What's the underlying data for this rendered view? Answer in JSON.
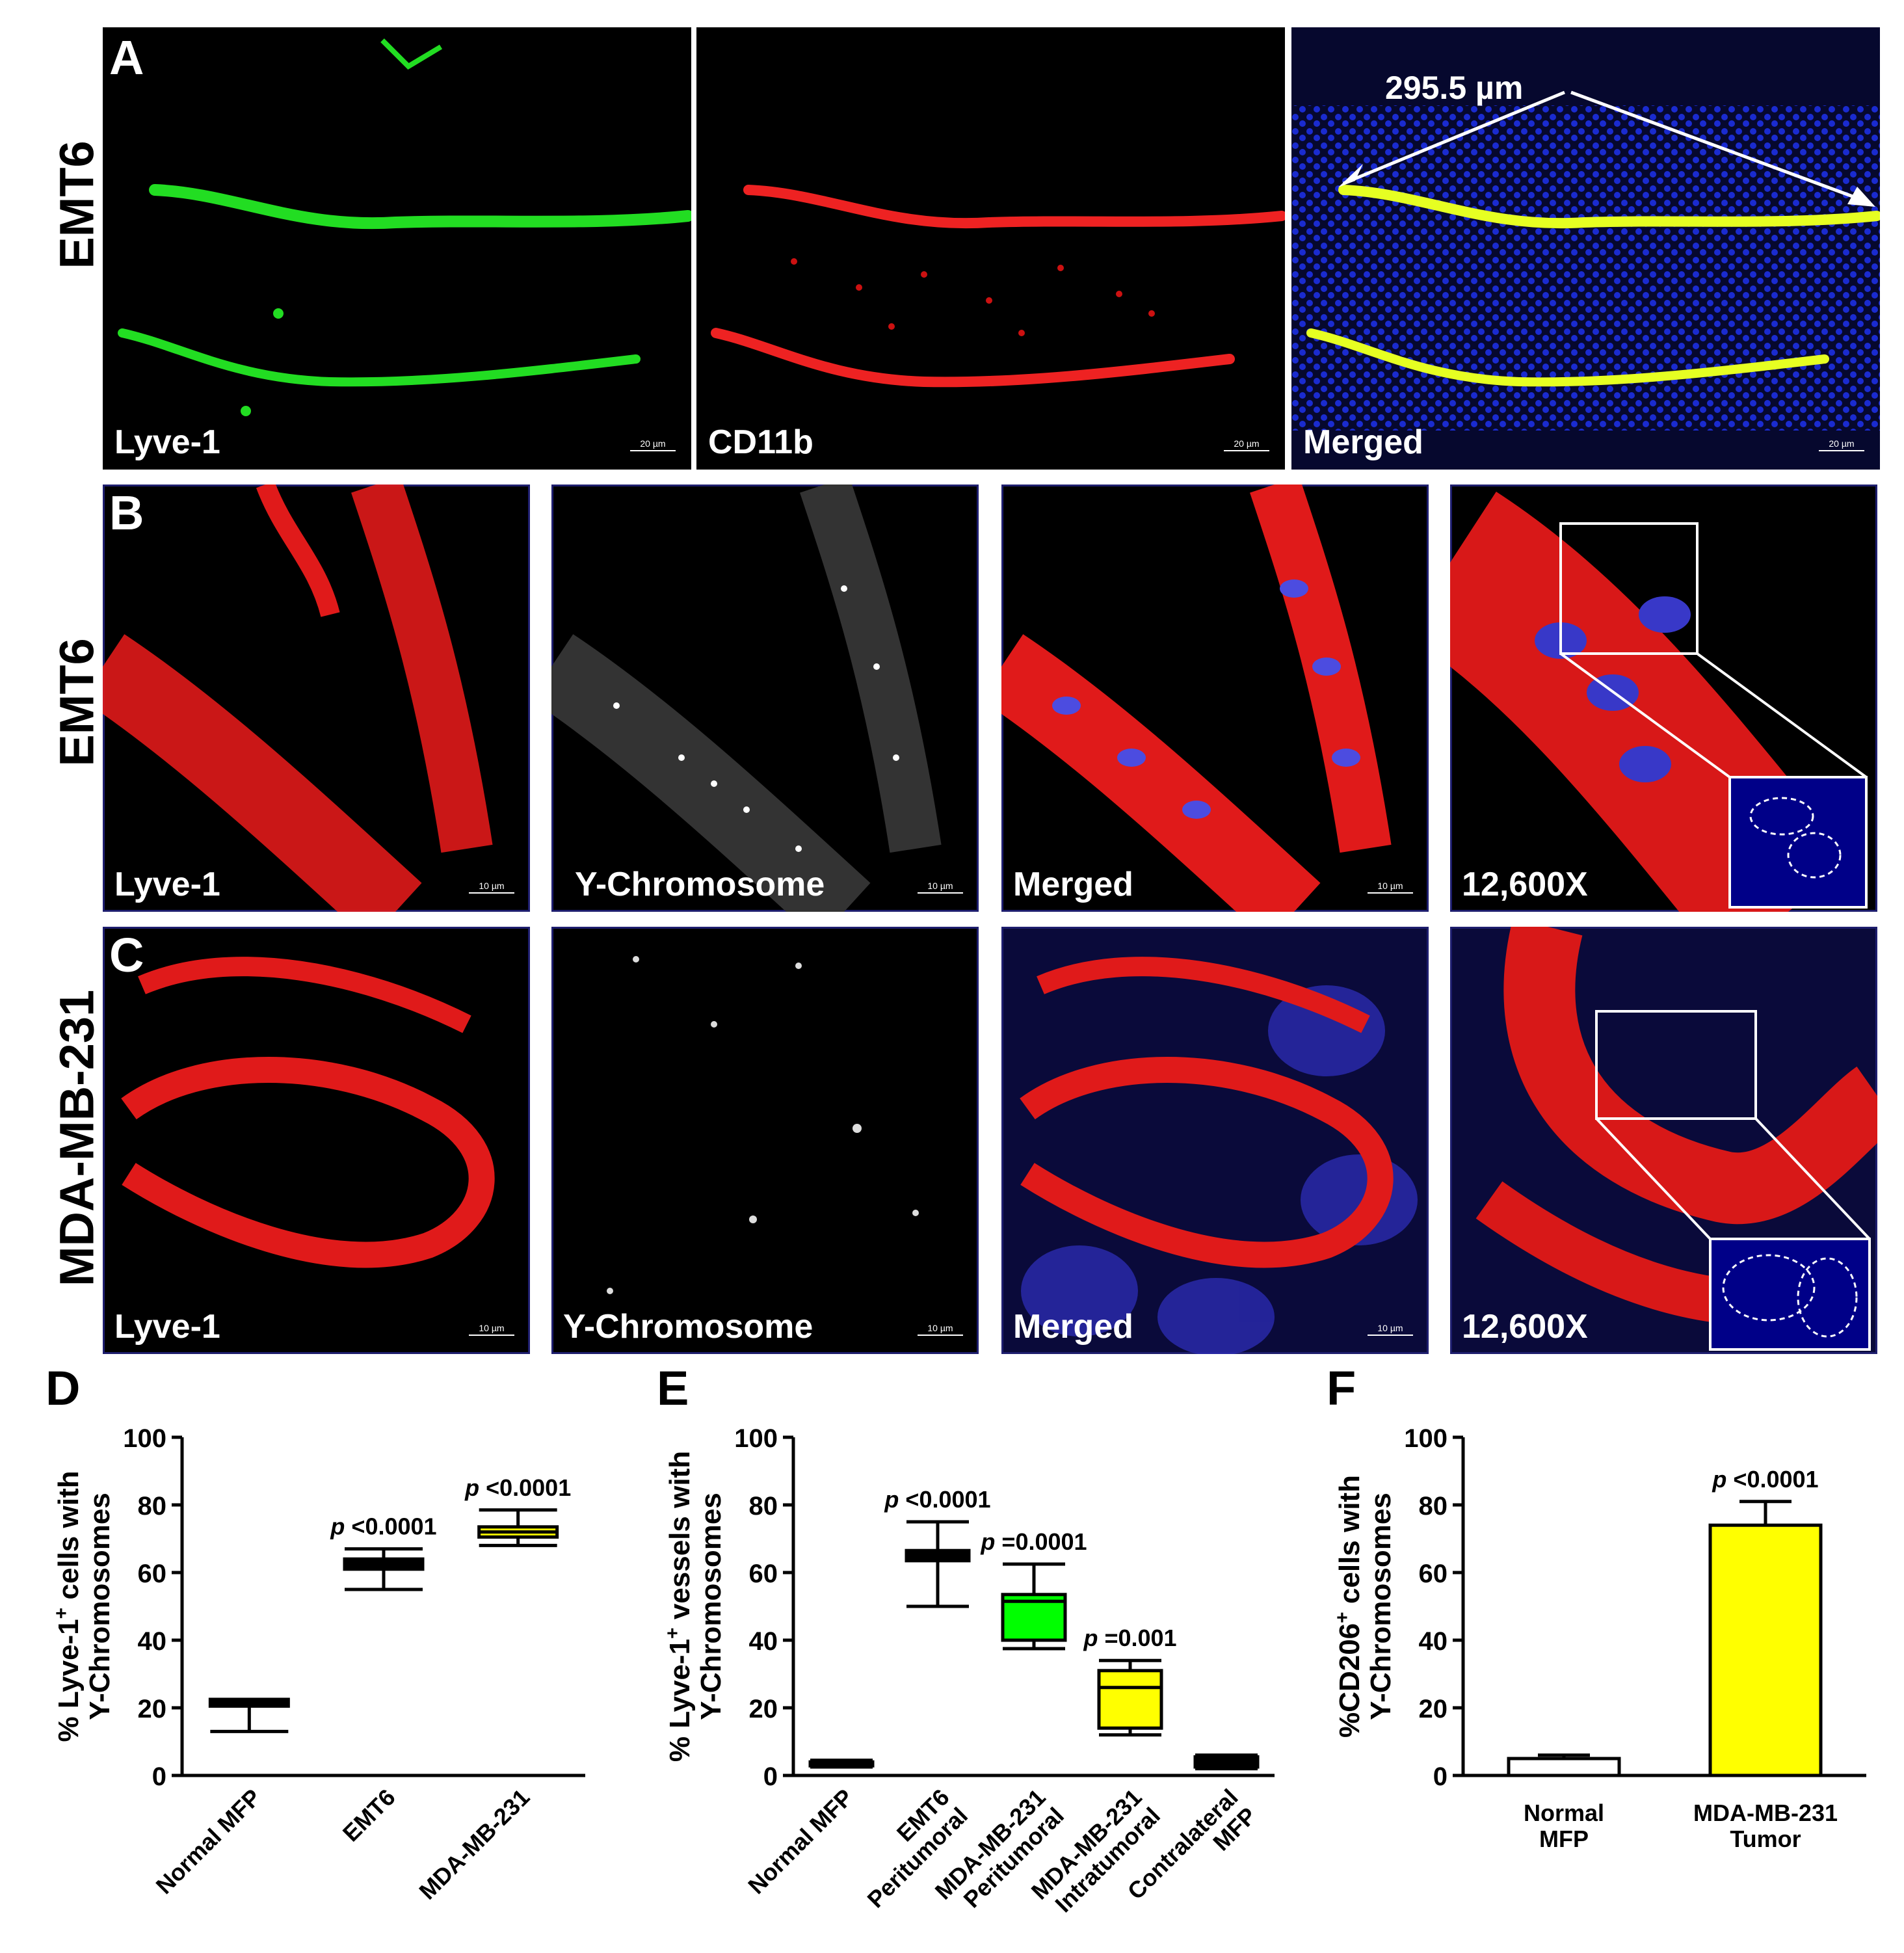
{
  "rows": {
    "a": {
      "letter": "A",
      "cell_line": "EMT6"
    },
    "b": {
      "letter": "B",
      "cell_line": "EMT6"
    },
    "c": {
      "letter": "C",
      "cell_line": "MDA-MB-231"
    }
  },
  "panel_a": {
    "labels": [
      "Lyve-1",
      "CD11b",
      "Merged"
    ],
    "measurement": "295.5 µm",
    "scale_bar": "20 µm"
  },
  "panel_b": {
    "labels": [
      "Lyve-1",
      "Y-Chromosome",
      "Merged",
      "12,600X"
    ],
    "scale_bar": "10 µm"
  },
  "panel_c": {
    "labels": [
      "Lyve-1",
      "Y-Chromosome",
      "Merged",
      "12,600X"
    ],
    "scale_bar": "10 µm"
  },
  "chart_data": [
    {
      "panel": "D",
      "type": "box",
      "ylabel_line1": "% Lyve-1",
      "ylabel_sup": "+",
      "ylabel_line1_end": " cells with",
      "ylabel_line2": "Y-Chromosomes",
      "ylim": [
        0,
        100
      ],
      "yticks": [
        "0",
        "20",
        "40",
        "60",
        "80",
        "100"
      ],
      "categories": [
        "Normal  MFP",
        "EMT6",
        "MDA-MB-231"
      ],
      "boxes": [
        {
          "min": 13,
          "q1": 20.5,
          "median": 21.5,
          "q3": 22.5,
          "max": 22.5,
          "fill": "#000000",
          "p_label": ""
        },
        {
          "min": 55,
          "q1": 61,
          "median": 62.5,
          "q3": 64,
          "max": 67,
          "fill": "#000000",
          "p_label": "<0.0001"
        },
        {
          "min": 68,
          "q1": 70.5,
          "median": 72,
          "q3": 73.5,
          "max": 78.5,
          "fill": "#ffff00",
          "p_label": "<0.0001"
        }
      ]
    },
    {
      "panel": "E",
      "type": "box",
      "ylabel_line1": "% Lyve-1",
      "ylabel_sup": "+",
      "ylabel_line1_end": " vessels with",
      "ylabel_line2": "Y-Chromosomes",
      "ylim": [
        0,
        100
      ],
      "yticks": [
        "0",
        "20",
        "40",
        "60",
        "80",
        "100"
      ],
      "categories": [
        "Normal MFP",
        "EMT6\nPeritumoral",
        "MDA-MB-231\nPeritumoral",
        "MDA-MB-231\nIntratumoral",
        "Contralateral\nMFP"
      ],
      "boxes": [
        {
          "min": 2.5,
          "q1": 3,
          "median": 3.5,
          "q3": 4,
          "max": 4.5,
          "fill": "#000000",
          "p_label": ""
        },
        {
          "min": 50,
          "q1": 63.5,
          "median": 65,
          "q3": 66.5,
          "max": 75,
          "fill": "#000000",
          "p_label": "<0.0001"
        },
        {
          "min": 37.5,
          "q1": 40,
          "median": 51.5,
          "q3": 53.5,
          "max": 62.5,
          "fill": "#00ff00",
          "p_label": "=0.0001"
        },
        {
          "min": 12,
          "q1": 14,
          "median": 26,
          "q3": 31,
          "max": 34,
          "fill": "#ffff00",
          "p_label": "=0.001"
        },
        {
          "min": 2,
          "q1": 2.5,
          "median": 4.5,
          "q3": 5.5,
          "max": 6,
          "fill": "#000000",
          "p_label": ""
        }
      ]
    },
    {
      "panel": "F",
      "type": "bar",
      "ylabel_line1": "%CD206",
      "ylabel_sup": "+",
      "ylabel_line1_end": " cells with",
      "ylabel_line2": "Y-Chromosomes",
      "ylim": [
        0,
        100
      ],
      "yticks": [
        "0",
        "20",
        "40",
        "60",
        "80",
        "100"
      ],
      "categories": [
        "Normal\nMFP",
        "MDA-MB-231\nTumor"
      ],
      "values": [
        5,
        74
      ],
      "errors": [
        1,
        7
      ],
      "fills": [
        "#ffffff",
        "#ffff00"
      ],
      "p_labels": [
        "",
        "<0.0001"
      ]
    }
  ]
}
